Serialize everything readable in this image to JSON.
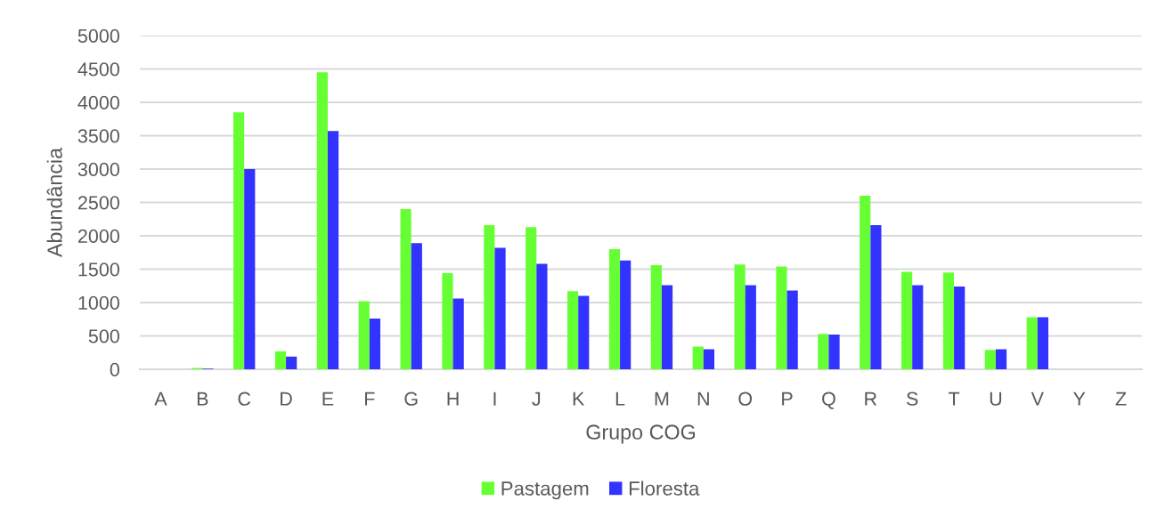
{
  "chart_data": {
    "type": "bar",
    "categories": [
      "A",
      "B",
      "C",
      "D",
      "E",
      "F",
      "G",
      "H",
      "I",
      "J",
      "K",
      "L",
      "M",
      "N",
      "O",
      "P",
      "Q",
      "R",
      "S",
      "T",
      "U",
      "V",
      "Y",
      "Z"
    ],
    "series": [
      {
        "name": "Pastagem",
        "color": "#66ff33",
        "values": [
          0,
          20,
          3850,
          270,
          4450,
          1020,
          2400,
          1440,
          2160,
          2130,
          1170,
          1800,
          1560,
          340,
          1570,
          1540,
          530,
          2600,
          1460,
          1450,
          290,
          780,
          0,
          0
        ]
      },
      {
        "name": "Floresta",
        "color": "#3333ff",
        "values": [
          0,
          10,
          3000,
          190,
          3570,
          760,
          1890,
          1060,
          1820,
          1580,
          1100,
          1630,
          1260,
          300,
          1260,
          1180,
          520,
          2160,
          1260,
          1240,
          300,
          780,
          0,
          0
        ]
      }
    ],
    "xlabel": "Grupo COG",
    "ylabel": "Abundância",
    "ylim": [
      0,
      5000
    ],
    "yticks": [
      0,
      500,
      1000,
      1500,
      2000,
      2500,
      3000,
      3500,
      4000,
      4500,
      5000
    ],
    "grid": "y",
    "legend": "bottom"
  }
}
